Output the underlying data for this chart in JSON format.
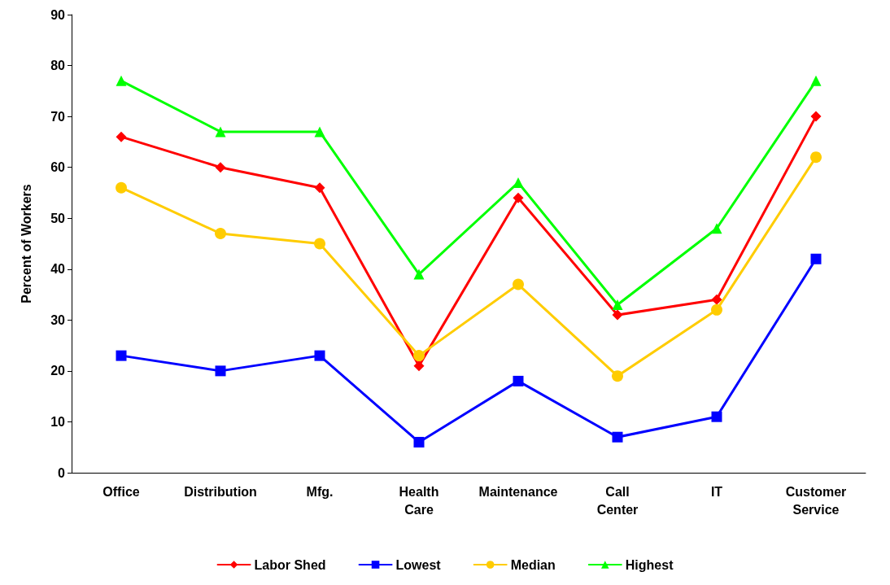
{
  "chart_data": {
    "type": "line",
    "ylabel": "Percent of Workers",
    "categories": [
      "Office",
      "Distribution",
      "Mfg.",
      "Health Care",
      "Maintenance",
      "Call Center",
      "IT",
      "Customer Service"
    ],
    "ylim": [
      0,
      90
    ],
    "yticks": [
      0,
      10,
      20,
      30,
      40,
      50,
      60,
      70,
      80,
      90
    ],
    "grid": false,
    "legend": "bottom",
    "line_style": "solid",
    "series": [
      {
        "name": "Labor Shed",
        "color": "#ff0000",
        "marker": "diamond",
        "values": [
          66,
          60,
          56,
          21,
          54,
          31,
          34,
          70
        ]
      },
      {
        "name": "Lowest",
        "color": "#0000ff",
        "marker": "square",
        "values": [
          23,
          20,
          23,
          6,
          18,
          7,
          11,
          42
        ]
      },
      {
        "name": "Median",
        "color": "#ffcc00",
        "marker": "circle",
        "values": [
          56,
          47,
          45,
          23,
          37,
          19,
          32,
          62
        ]
      },
      {
        "name": "Highest",
        "color": "#00ff00",
        "marker": "triangle",
        "values": [
          77,
          67,
          67,
          39,
          57,
          33,
          48,
          77
        ]
      }
    ]
  }
}
